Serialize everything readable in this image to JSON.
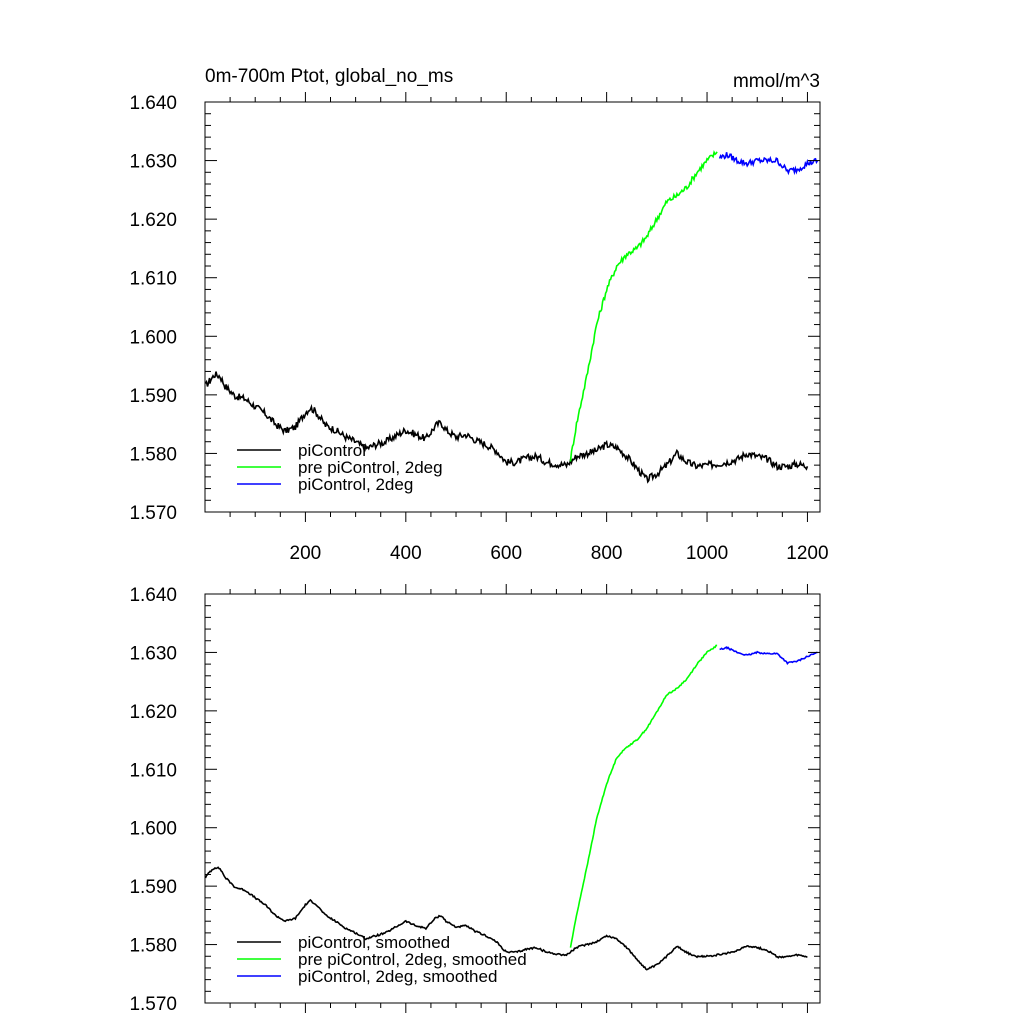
{
  "chart_data": [
    {
      "type": "line",
      "title": "0m-700m Ptot, global_no_ms",
      "units": "mmol/m^3",
      "xlim": [
        0,
        1225
      ],
      "ylim": [
        1.57,
        1.64
      ],
      "xticks": [
        200,
        400,
        600,
        800,
        1000,
        1200
      ],
      "xtick_labels": [
        "200",
        "400",
        "600",
        "800",
        "1000",
        "1200"
      ],
      "yticks": [
        1.57,
        1.58,
        1.59,
        1.6,
        1.61,
        1.62,
        1.63,
        1.64
      ],
      "ytick_labels": [
        "1.570",
        "1.580",
        "1.590",
        "1.600",
        "1.610",
        "1.620",
        "1.630",
        "1.640"
      ],
      "series": [
        {
          "name": "piControl",
          "color": "#000000",
          "noise": 0.0006,
          "x": [
            1,
            10,
            20,
            30,
            40,
            60,
            80,
            100,
            120,
            140,
            160,
            180,
            200,
            210,
            220,
            240,
            260,
            280,
            300,
            320,
            340,
            360,
            380,
            400,
            420,
            440,
            460,
            470,
            480,
            500,
            520,
            540,
            560,
            580,
            600,
            620,
            640,
            660,
            680,
            700,
            720,
            740,
            760,
            780,
            800,
            820,
            840,
            860,
            880,
            900,
            920,
            940,
            960,
            980,
            1000,
            1020,
            1040,
            1060,
            1080,
            1100,
            1120,
            1140,
            1160,
            1180,
            1200
          ],
          "y": [
            1.5915,
            1.5925,
            1.5935,
            1.5932,
            1.5915,
            1.5898,
            1.5893,
            1.588,
            1.5868,
            1.585,
            1.5838,
            1.5845,
            1.587,
            1.5878,
            1.5872,
            1.5848,
            1.584,
            1.5828,
            1.582,
            1.5808,
            1.5815,
            1.582,
            1.583,
            1.584,
            1.5832,
            1.5825,
            1.5848,
            1.5853,
            1.584,
            1.5828,
            1.5832,
            1.5822,
            1.5815,
            1.5805,
            1.5785,
            1.5785,
            1.5792,
            1.5795,
            1.5785,
            1.5782,
            1.578,
            1.5795,
            1.58,
            1.5805,
            1.5815,
            1.581,
            1.5795,
            1.5775,
            1.5755,
            1.5765,
            1.578,
            1.58,
            1.5785,
            1.5778,
            1.578,
            1.5782,
            1.5785,
            1.579,
            1.58,
            1.5795,
            1.579,
            1.5778,
            1.5778,
            1.5782,
            1.5778
          ]
        },
        {
          "name": "pre piControl, 2deg",
          "color": "#00ff00",
          "noise": 0.0005,
          "x": [
            728,
            740,
            760,
            780,
            800,
            820,
            840,
            860,
            880,
            900,
            920,
            940,
            960,
            980,
            1000,
            1020
          ],
          "y": [
            1.579,
            1.585,
            1.593,
            1.602,
            1.608,
            1.612,
            1.614,
            1.615,
            1.617,
            1.62,
            1.623,
            1.624,
            1.6255,
            1.628,
            1.63,
            1.6315
          ]
        },
        {
          "name": "piControl, 2deg",
          "color": "#0000ff",
          "noise": 0.0005,
          "x": [
            1025,
            1040,
            1060,
            1080,
            1100,
            1120,
            1140,
            1160,
            1180,
            1200,
            1220
          ],
          "y": [
            1.6305,
            1.631,
            1.63,
            1.6295,
            1.63,
            1.63,
            1.63,
            1.6282,
            1.6285,
            1.6295,
            1.63
          ]
        }
      ]
    },
    {
      "type": "line",
      "title": "",
      "xlim": [
        0,
        1225
      ],
      "ylim": [
        1.57,
        1.64
      ],
      "xticks": [
        200,
        400,
        600,
        800,
        1000,
        1200
      ],
      "yticks": [
        1.57,
        1.58,
        1.59,
        1.6,
        1.61,
        1.62,
        1.63,
        1.64
      ],
      "ytick_labels": [
        "1.570",
        "1.580",
        "1.590",
        "1.600",
        "1.610",
        "1.620",
        "1.630",
        "1.640"
      ],
      "series": [
        {
          "name": "piControl, smoothed",
          "color": "#000000",
          "noise": 0.00015,
          "x": [
            1,
            10,
            20,
            30,
            40,
            60,
            80,
            100,
            120,
            140,
            160,
            180,
            200,
            210,
            220,
            240,
            260,
            280,
            300,
            320,
            340,
            360,
            380,
            400,
            420,
            440,
            460,
            470,
            480,
            500,
            520,
            540,
            560,
            580,
            600,
            620,
            640,
            660,
            680,
            700,
            720,
            740,
            760,
            780,
            800,
            820,
            840,
            860,
            880,
            900,
            920,
            940,
            960,
            980,
            1000,
            1020,
            1040,
            1060,
            1080,
            1100,
            1120,
            1140,
            1160,
            1180,
            1200
          ],
          "y": [
            1.5915,
            1.5925,
            1.5932,
            1.593,
            1.5915,
            1.5898,
            1.5893,
            1.588,
            1.5868,
            1.585,
            1.584,
            1.5845,
            1.5868,
            1.5875,
            1.587,
            1.585,
            1.584,
            1.5828,
            1.582,
            1.581,
            1.5815,
            1.582,
            1.583,
            1.584,
            1.5832,
            1.5828,
            1.5846,
            1.585,
            1.584,
            1.583,
            1.5832,
            1.5822,
            1.5815,
            1.5805,
            1.5787,
            1.5787,
            1.5792,
            1.5795,
            1.5787,
            1.5784,
            1.5782,
            1.5795,
            1.58,
            1.5805,
            1.5815,
            1.581,
            1.5795,
            1.5775,
            1.5757,
            1.5765,
            1.578,
            1.5798,
            1.5786,
            1.5779,
            1.578,
            1.5782,
            1.5785,
            1.579,
            1.5798,
            1.5795,
            1.579,
            1.5779,
            1.5779,
            1.5782,
            1.5779
          ]
        },
        {
          "name": "pre piControl, 2deg, smoothed",
          "color": "#00ff00",
          "noise": 0.00012,
          "x": [
            728,
            740,
            760,
            780,
            800,
            820,
            840,
            860,
            880,
            900,
            920,
            940,
            960,
            980,
            1000,
            1020
          ],
          "y": [
            1.5795,
            1.585,
            1.593,
            1.6015,
            1.6075,
            1.612,
            1.6138,
            1.615,
            1.617,
            1.6198,
            1.6228,
            1.6238,
            1.6255,
            1.628,
            1.63,
            1.6312
          ]
        },
        {
          "name": "piControl, 2deg, smoothed",
          "color": "#0000ff",
          "noise": 0.00012,
          "x": [
            1025,
            1040,
            1060,
            1080,
            1100,
            1120,
            1140,
            1160,
            1180,
            1200,
            1220
          ],
          "y": [
            1.6305,
            1.6308,
            1.63,
            1.6295,
            1.63,
            1.6298,
            1.6298,
            1.6282,
            1.6285,
            1.6293,
            1.63
          ]
        }
      ]
    }
  ]
}
